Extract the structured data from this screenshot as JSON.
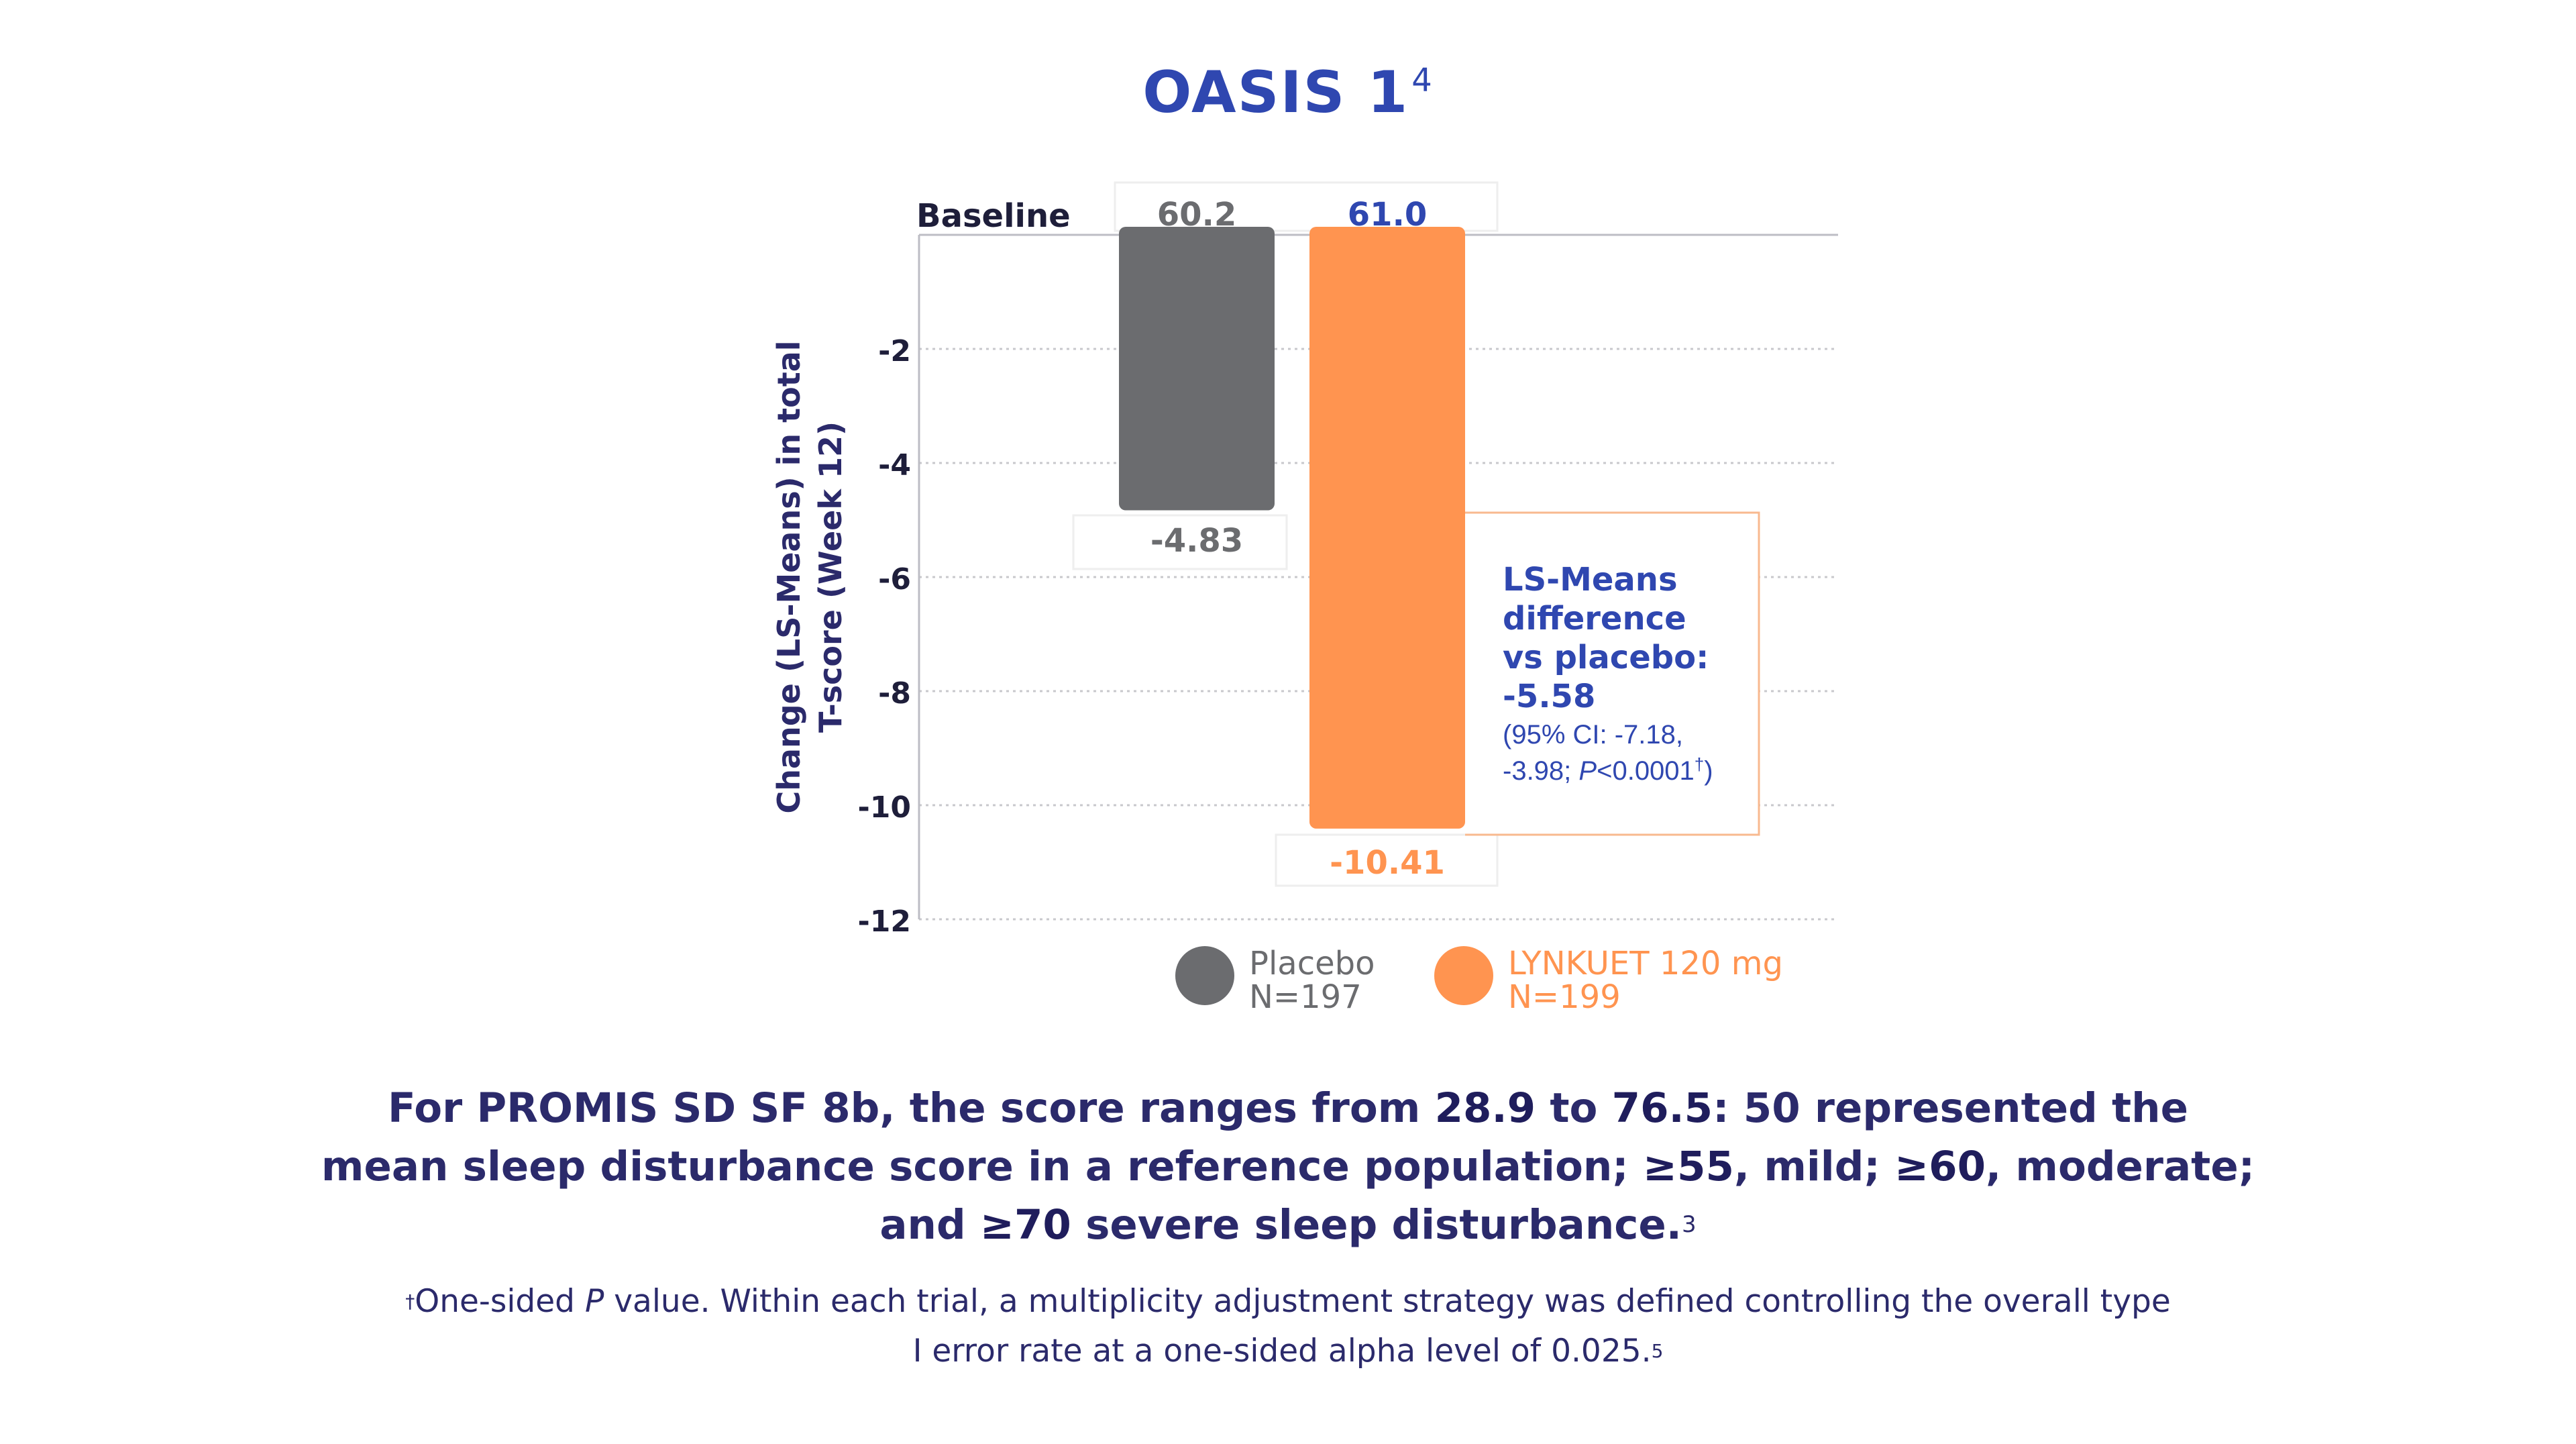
{
  "title": "OASIS 1",
  "title_superscript": "4",
  "chart_data": {
    "type": "bar",
    "categories": [
      "Placebo",
      "LYNKUET 120 mg"
    ],
    "series": [
      {
        "name": "Change (LS-Means) in total T-score (Week 12)",
        "values": [
          -4.83,
          -10.41
        ]
      }
    ],
    "value_labels": [
      "-4.83",
      "-10.41"
    ],
    "baseline": {
      "label": "Baseline",
      "values": [
        "60.2",
        "61.0"
      ]
    },
    "ylabel_line1": "Change (LS-Means) in total",
    "ylabel_line2": "T-score (Week 12)",
    "yticks": [
      -2,
      -4,
      -6,
      -8,
      -10,
      -12
    ],
    "ytick_labels": [
      "-2",
      "-4",
      "-6",
      "-8",
      "-10",
      "-12"
    ],
    "ylim": [
      -12,
      0
    ],
    "grid": true,
    "legend": {
      "placement": "bottom",
      "items": [
        {
          "name": "Placebo",
          "n": "N=197",
          "color": "#6b6c6f"
        },
        {
          "name": "LYNKUET 120 mg",
          "n": "N=199",
          "color": "#ff9450"
        }
      ]
    },
    "annotation": {
      "lines": [
        "LS-Means",
        "difference",
        "vs placebo:",
        "-5.58"
      ],
      "detail_line1": "(95% CI: -7.18,",
      "detail_line2_prefix": "-3.98; ",
      "detail_line2_p": "P",
      "detail_line2_suffix": "<0.0001",
      "detail_line2_mark": "†",
      "detail_line2_close": ")"
    }
  },
  "colors": {
    "placebo": "#6b6c6f",
    "lynkuet": "#ff9450",
    "accent_blue": "#2f47b0",
    "navy": "#2b2a6b"
  },
  "footnote_main": {
    "p1": "For PROMIS SD SF 8b, the score ranges from ",
    "b1": "28.9",
    "p2": " to ",
    "b2": "76.5",
    "p3": ": 50 represented the",
    "p4": "mean sleep disturbance score in a reference population; ",
    "b3": "≥55",
    "p5": ", mild; ",
    "b4": "≥60",
    "p6": ", moderate;",
    "p7": "and ",
    "b5": "≥70",
    "p8": " severe sleep disturbance.",
    "sup": "3"
  },
  "footnote_small": {
    "dagger": "†",
    "p1": "One-sided ",
    "p_italic": "P",
    "p2": " value. Within each trial, a multiplicity adjustment strategy was defined controlling the overall type",
    "p3": "I error rate at a one-sided alpha level of 0.025.",
    "sup": "5"
  }
}
